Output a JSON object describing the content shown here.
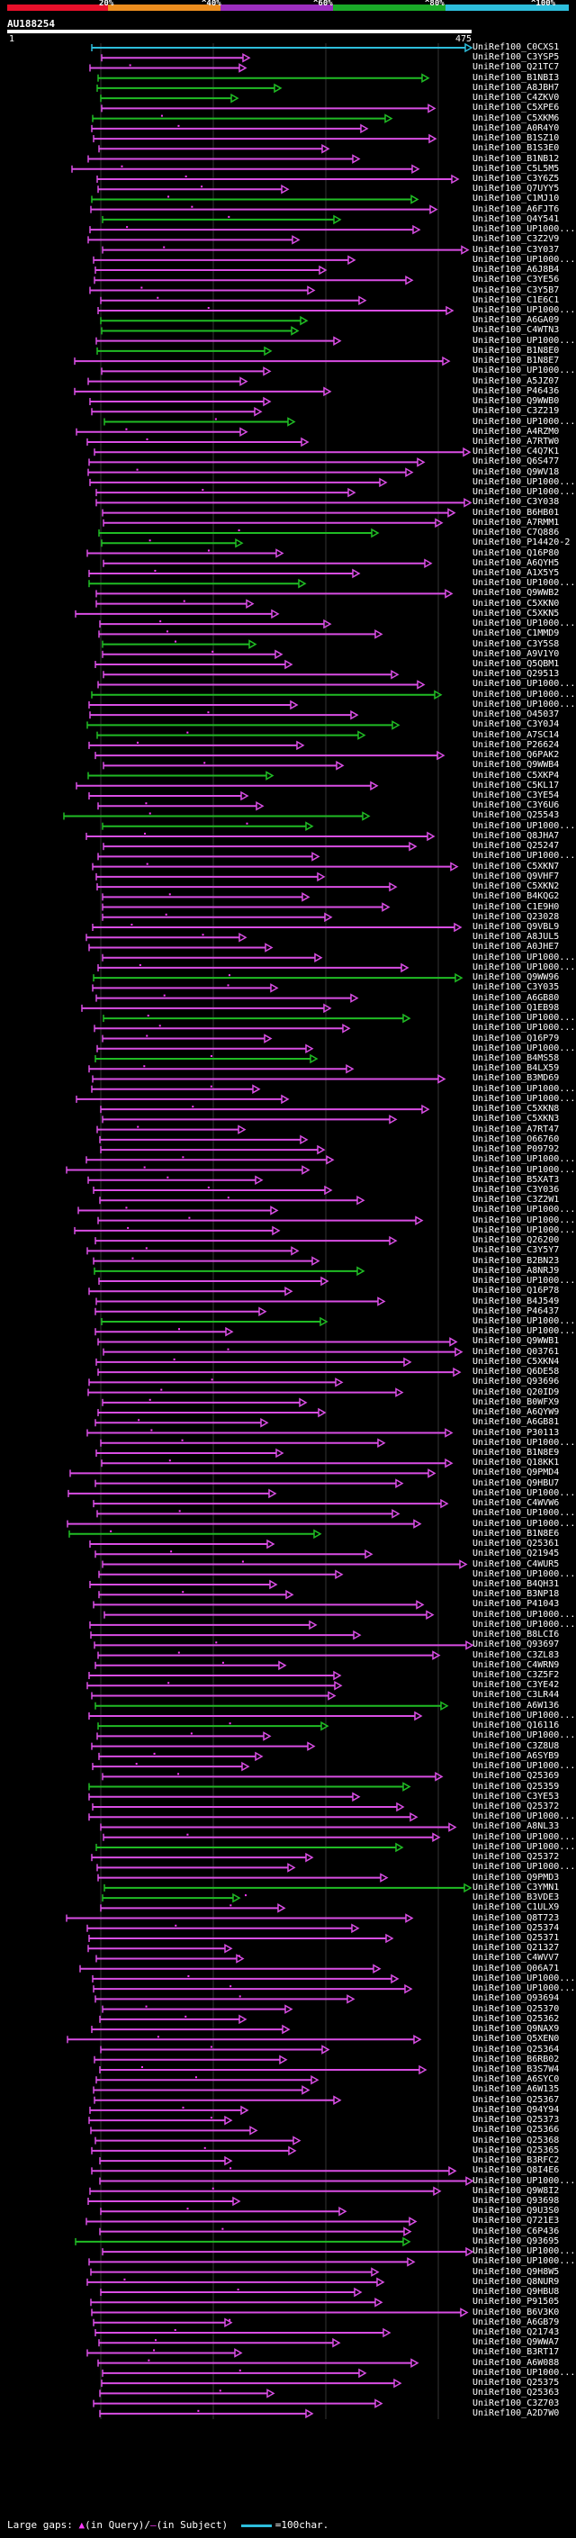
{
  "identity_scale": {
    "labels": [
      "20%",
      "^40%",
      "^60%",
      "^80%",
      "^100%"
    ],
    "colors": [
      "#e8102a",
      "#ec8d1e",
      "#9c2ec0",
      "#1aaa28",
      "#2dbedc"
    ]
  },
  "query": {
    "name": "AU188254",
    "start": "1",
    "end": "475"
  },
  "hit_colors": {
    "magenta": "#d94ee4",
    "green": "#20bc24",
    "cyan": "#2dbedc"
  },
  "hits": [
    "UniRef100_C0CXS1",
    "UniRef100_C3YSP5",
    "UniRef100_Q21TC7",
    "UniRef100_B1NBI3",
    "UniRef100_A8JBH7",
    "UniRef100_C4ZKV0",
    "UniRef100_C5XPE6",
    "UniRef100_C5XKM6",
    "UniRef100_A0R4Y0",
    "UniRef100_B1SZ10",
    "UniRef100_B1S3E0",
    "UniRef100_B1NB12",
    "UniRef100_C5L5M5",
    "UniRef100_C3Y6Z5",
    "UniRef100_Q7UYY5",
    "UniRef100_C1MJ10",
    "UniRef100_A6FJT6",
    "UniRef100_Q4Y541",
    "UniRef100_UP1000...",
    "UniRef100_C3Z2V9",
    "UniRef100_C3Y037",
    "UniRef100_UP1000...",
    "UniRef100_A6J8B4",
    "UniRef100_C3YE56",
    "UniRef100_C3Y5B7",
    "UniRef100_C1E6C1",
    "UniRef100_UP1000...",
    "UniRef100_A6GA09",
    "UniRef100_C4WTN3",
    "UniRef100_UP1000...",
    "UniRef100_B1N8E0",
    "UniRef100_B1N8E7",
    "UniRef100_UP1000...",
    "UniRef100_A5JZ07",
    "UniRef100_P46436",
    "UniRef100_Q9WWB0",
    "UniRef100_C3Z219",
    "UniRef100_UP1000...",
    "UniRef100_A4RZM0",
    "UniRef100_A7RTW0",
    "UniRef100_C4Q7K1",
    "UniRef100_Q6S477",
    "UniRef100_Q9WV18",
    "UniRef100_UP1000...",
    "UniRef100_UP1000...",
    "UniRef100_C3Y038",
    "UniRef100_B6HB01",
    "UniRef100_A7RMM1",
    "UniRef100_C7Q886",
    "UniRef100_P14420-2",
    "UniRef100_Q16P80",
    "UniRef100_A6QYH5",
    "UniRef100_A1X5Y5",
    "UniRef100_UP1000...",
    "UniRef100_Q9WWB2",
    "UniRef100_C5XKN0",
    "UniRef100_C5XKN5",
    "UniRef100_UP1000...",
    "UniRef100_C1MMD9",
    "UniRef100_C3Y5S8",
    "UniRef100_A9V1Y0",
    "UniRef100_Q5QBM1",
    "UniRef100_Q29513",
    "UniRef100_UP1000...",
    "UniRef100_UP1000...",
    "UniRef100_UP1000...",
    "UniRef100_O45037",
    "UniRef100_C3Y0J4",
    "UniRef100_A7SC14",
    "UniRef100_P26624",
    "UniRef100_Q6PAK2",
    "UniRef100_Q9WWB4",
    "UniRef100_C5XKP4",
    "UniRef100_C5KL17",
    "UniRef100_C3YE54",
    "UniRef100_C3Y6U6",
    "UniRef100_Q25543",
    "UniRef100_UP1000...",
    "UniRef100_Q8JHA7",
    "UniRef100_Q25247",
    "UniRef100_UP1000...",
    "UniRef100_C5XKN7",
    "UniRef100_Q9VHF7",
    "UniRef100_C5XKN2",
    "UniRef100_B4KQG2",
    "UniRef100_C1E9H0",
    "UniRef100_Q23028",
    "UniRef100_Q9VBL9",
    "UniRef100_A8JUL5",
    "UniRef100_A0JHE7",
    "UniRef100_UP1000...",
    "UniRef100_UP1000...",
    "UniRef100_Q9WW96",
    "UniRef100_C3Y035",
    "UniRef100_A6GB80",
    "UniRef100_Q1EB98",
    "UniRef100_UP1000...",
    "UniRef100_UP1000...",
    "UniRef100_Q16P79",
    "UniRef100_UP1000...",
    "UniRef100_B4MS58",
    "UniRef100_B4LX59",
    "UniRef100_B3MD69",
    "UniRef100_UP1000...",
    "UniRef100_UP1000...",
    "UniRef100_C5XKN8",
    "UniRef100_C5XKN3",
    "UniRef100_A7RT47",
    "UniRef100_O66760",
    "UniRef100_P09792",
    "UniRef100_UP1000...",
    "UniRef100_UP1000...",
    "UniRef100_B5XAT3",
    "UniRef100_C3Y036",
    "UniRef100_C3Z2W1",
    "UniRef100_UP1000...",
    "UniRef100_UP1000...",
    "UniRef100_UP1000...",
    "UniRef100_Q26200",
    "UniRef100_C3Y5Y7",
    "UniRef100_B2BN23",
    "UniRef100_A8NRJ9",
    "UniRef100_UP1000...",
    "UniRef100_Q16P78",
    "UniRef100_B4J549",
    "UniRef100_P46437",
    "UniRef100_UP1000...",
    "UniRef100_UP1000...",
    "UniRef100_Q9WWB1",
    "UniRef100_Q03761",
    "UniRef100_C5XKN4",
    "UniRef100_Q6DE58",
    "UniRef100_Q93696",
    "UniRef100_Q20ID9",
    "UniRef100_B0WFX9",
    "UniRef100_A6QYW9",
    "UniRef100_A6GB81",
    "UniRef100_P30113",
    "UniRef100_UP1000...",
    "UniRef100_B1N8E9",
    "UniRef100_Q18KK1",
    "UniRef100_Q9PMD4",
    "UniRef100_Q9HBU7",
    "UniRef100_UP1000...",
    "UniRef100_C4WVW6",
    "UniRef100_UP1000...",
    "UniRef100_UP1000...",
    "UniRef100_B1N8E6",
    "UniRef100_Q25361",
    "UniRef100_Q21945",
    "UniRef100_C4WUR5",
    "UniRef100_UP1000...",
    "UniRef100_B4QH31",
    "UniRef100_B3NP18",
    "UniRef100_P41043",
    "UniRef100_UP1000...",
    "UniRef100_UP1000...",
    "UniRef100_B8LCI6",
    "UniRef100_Q93697",
    "UniRef100_C3ZL83",
    "UniRef100_C4WRN9",
    "UniRef100_C3Z5F2",
    "UniRef100_C3YE42",
    "UniRef100_C3LR44",
    "UniRef100_A6W136",
    "UniRef100_UP1000...",
    "UniRef100_Q16116",
    "UniRef100_UP1000...",
    "UniRef100_C3Z8U8",
    "UniRef100_A6SYB9",
    "UniRef100_UP1000...",
    "UniRef100_Q25369",
    "UniRef100_Q25359",
    "UniRef100_C3YE53",
    "UniRef100_Q25372",
    "UniRef100_UP1000...",
    "UniRef100_A8NL33",
    "UniRef100_UP1000...",
    "UniRef100_UP1000...",
    "UniRef100_Q25372",
    "UniRef100_UP1000...",
    "UniRef100_Q9PMD3",
    "UniRef100_C3YMN1",
    "UniRef100_B3VDE3",
    "UniRef100_C1ULX9",
    "UniRef100_Q8T723",
    "UniRef100_Q25374",
    "UniRef100_Q25371",
    "UniRef100_Q21327",
    "UniRef100_C4WVV7",
    "UniRef100_Q06A71",
    "UniRef100_UP1000...",
    "UniRef100_UP1000...",
    "UniRef100_Q93694",
    "UniRef100_Q25370",
    "UniRef100_Q25362",
    "UniRef100_Q9NAX9",
    "UniRef100_Q5XEN0",
    "UniRef100_Q25364",
    "UniRef100_B6RB02",
    "UniRef100_B3S7W4",
    "UniRef100_A6SYC0",
    "UniRef100_A6W135",
    "UniRef100_Q25367",
    "UniRef100_Q94Y94",
    "UniRef100_Q25373",
    "UniRef100_Q25366",
    "UniRef100_Q25368",
    "UniRef100_Q25365",
    "UniRef100_B3RFC2",
    "UniRef100_Q8I4E6",
    "UniRef100_UP1000...",
    "UniRef100_Q9W8I2",
    "UniRef100_Q93698",
    "UniRef100_Q9U3S0",
    "UniRef100_Q721E3",
    "UniRef100_C6P436",
    "UniRef100_Q93695",
    "UniRef100_UP1000...",
    "UniRef100_UP1000...",
    "UniRef100_Q9H8W5",
    "UniRef100_Q8NUR9",
    "UniRef100_Q9HBU8",
    "UniRef100_P91505",
    "UniRef100_B6V3K0",
    "UniRef100_A6GB79",
    "UniRef100_Q21743",
    "UniRef100_Q9WWA7",
    "UniRef100_B3RT17",
    "UniRef100_A6W088",
    "UniRef100_UP1000...",
    "UniRef100_Q25375",
    "UniRef100_Q25363",
    "UniRef100_C3Z703",
    "UniRef100_A2D7W0"
  ],
  "footer": {
    "prefix": "Large gaps:",
    "query_gap": "(in Query)",
    "subject_gap": "(in Subject)",
    "legend": "=100char."
  }
}
